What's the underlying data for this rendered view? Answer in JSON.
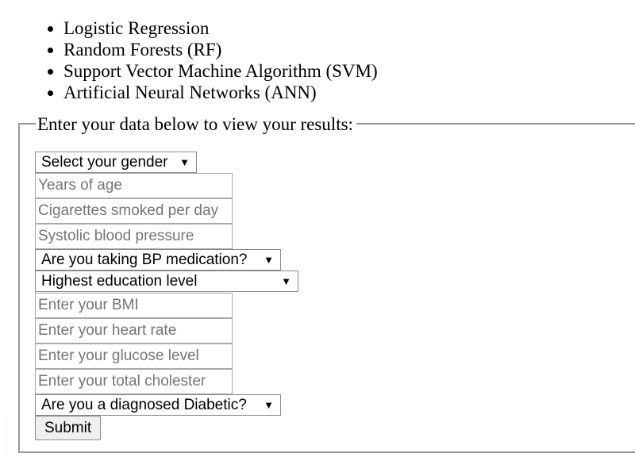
{
  "models": [
    "Logistic Regression",
    "Random Forests (RF)",
    "Support Vector Machine Algorithm (SVM)",
    "Artificial Neural Networks (ANN)"
  ],
  "form": {
    "legend": "Enter your data below to view your results:",
    "gender_select": "Select your gender",
    "age_placeholder": "Years of age",
    "cigarettes_placeholder": "Cigarettes smoked per day",
    "sys_bp_placeholder": "Systolic blood pressure",
    "bp_meds_select": "Are you taking BP medication?",
    "education_select": "Highest education level",
    "bmi_placeholder": "Enter your BMI",
    "heart_rate_placeholder": "Enter your heart rate",
    "glucose_placeholder": "Enter your glucose level",
    "cholesterol_placeholder": "Enter your total cholester",
    "diabetic_select": "Are you a diagnosed Diabetic?",
    "submit_label": "Submit",
    "dropdown_arrow": "▼"
  },
  "colors": {
    "placeholder_text": "#757575",
    "input_border": "#a9a9a9",
    "fieldset_border": "#999999"
  }
}
